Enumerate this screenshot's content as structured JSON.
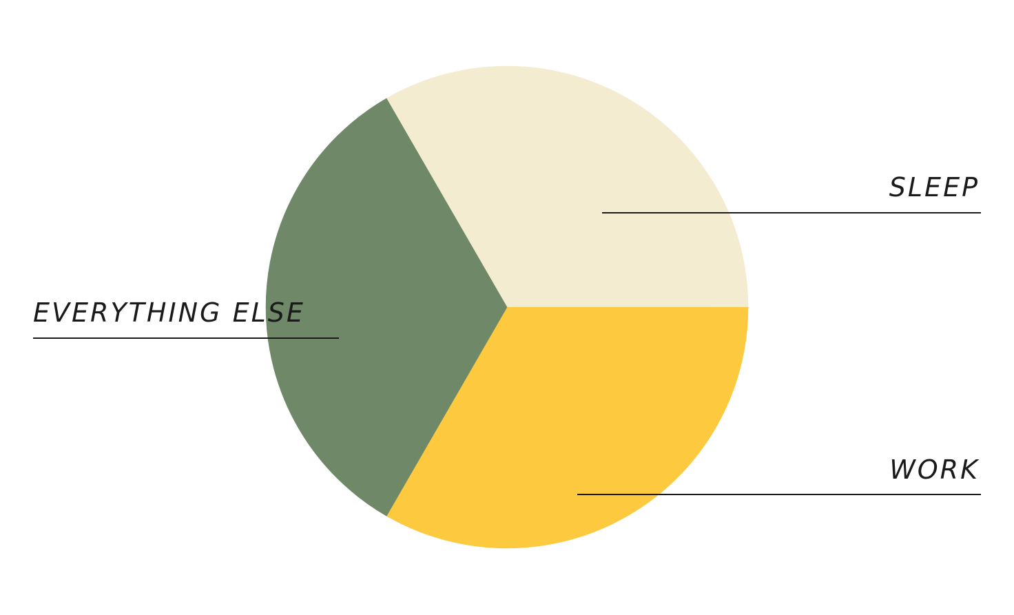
{
  "chart_data": {
    "type": "pie",
    "title": "",
    "slices": [
      {
        "label": "SLEEP",
        "value": 33.33,
        "color": "#f3ecd1"
      },
      {
        "label": "WORK",
        "value": 33.33,
        "color": "#fdc93f"
      },
      {
        "label": "EVERYTHING ELSE",
        "value": 33.34,
        "color": "#6e8868"
      }
    ],
    "legend": "none",
    "labels": "outside-with-leader-lines",
    "start_angle_deg": 0,
    "direction": "counterclockwise-from-3-oclock"
  },
  "colors": {
    "background": "#ffffff",
    "text": "#1a1a1a",
    "leader_line": "#1a1a1a"
  }
}
